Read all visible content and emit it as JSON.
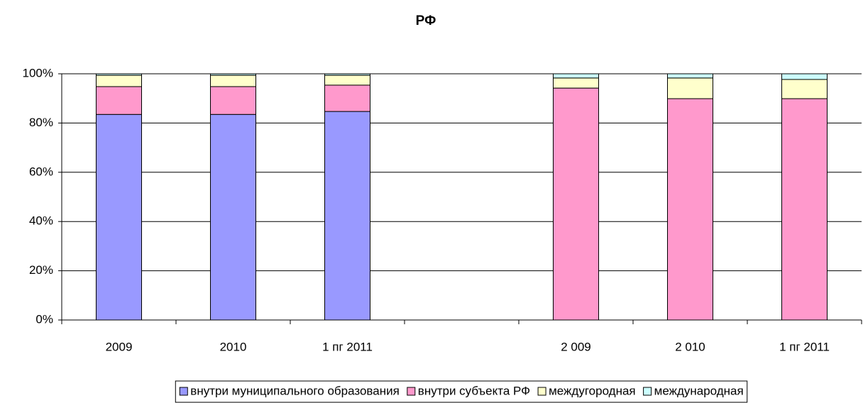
{
  "chart_data": {
    "type": "stacked_bar",
    "title": "РФ",
    "categories": [
      "2009",
      "2010",
      "1 пг 2011",
      null,
      "2 009",
      "2 010",
      "1 пг 2011"
    ],
    "series": [
      {
        "name": "внутри муниципального образования",
        "color": "#9999ff",
        "values": [
          83.5,
          83.5,
          84.7,
          null,
          0,
          0,
          0
        ]
      },
      {
        "name": "внутри субъекта РФ",
        "color": "#ff99cc",
        "values": [
          11.3,
          11.3,
          10.7,
          null,
          94.2,
          89.9,
          89.9
        ]
      },
      {
        "name": "междугородная",
        "color": "#ffffcc",
        "values": [
          4.6,
          4.6,
          4.0,
          null,
          4.1,
          8.4,
          7.8
        ]
      },
      {
        "name": "международная",
        "color": "#ccffff",
        "values": [
          0.6,
          0.6,
          0.6,
          null,
          1.7,
          1.7,
          2.3
        ]
      }
    ],
    "ylim": [
      0,
      100
    ],
    "yticks": [
      {
        "value": 0,
        "label": "0%"
      },
      {
        "value": 20,
        "label": "20%"
      },
      {
        "value": 40,
        "label": "40%"
      },
      {
        "value": 60,
        "label": "60%"
      },
      {
        "value": 80,
        "label": "80%"
      },
      {
        "value": 100,
        "label": "100%"
      }
    ],
    "grid": true,
    "legend": "bottom"
  }
}
